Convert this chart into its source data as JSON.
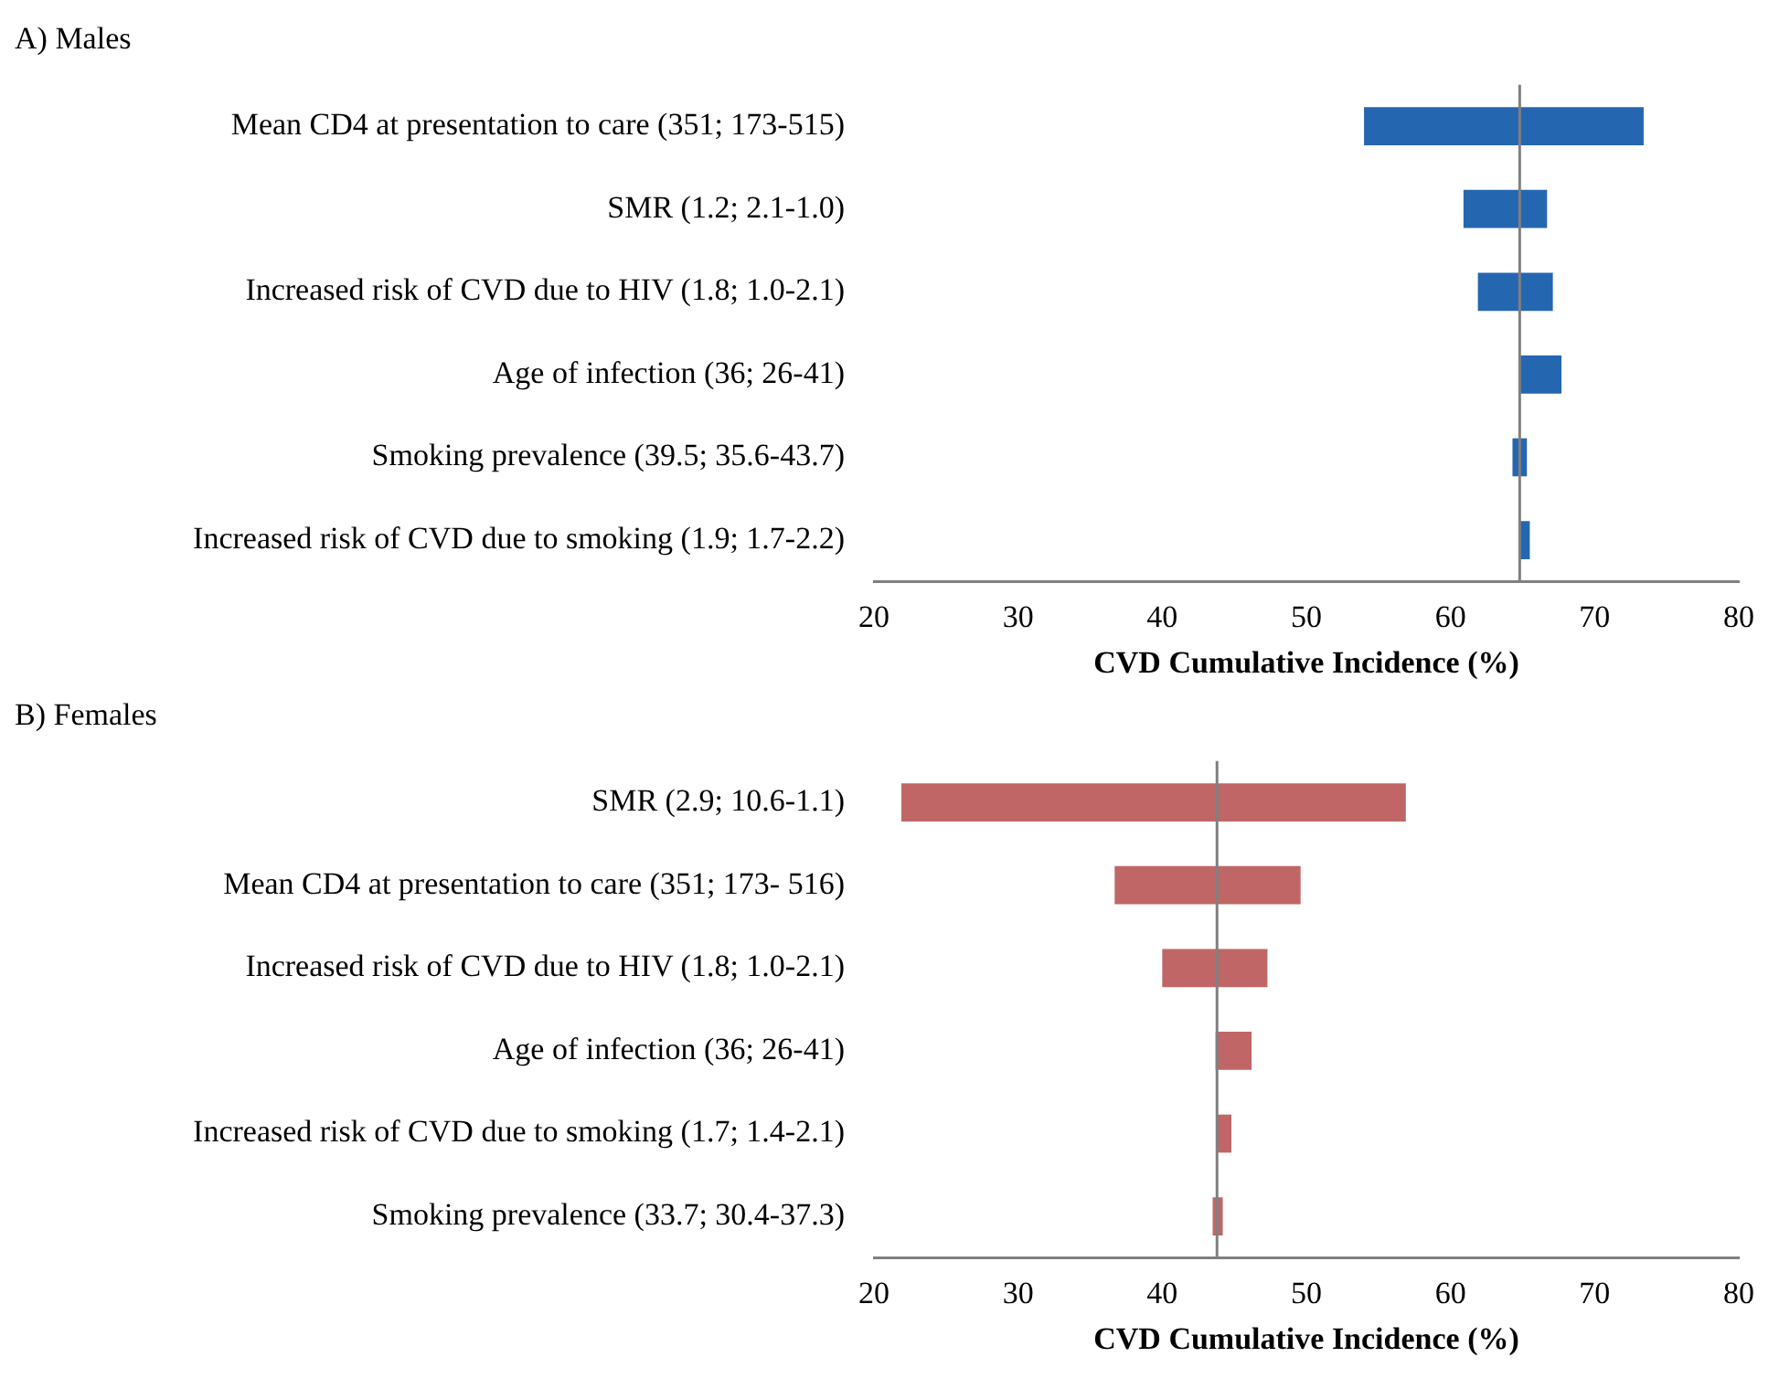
{
  "chart_data": [
    {
      "type": "bar",
      "orientation": "horizontal",
      "title": "A) Males",
      "xlabel": "CVD Cumulative Incidence (%)",
      "categories": [
        "Mean CD4 at presentation to care (351; 173-515)",
        "SMR (1.2; 2.1-1.0)",
        "Increased risk of CVD due to HIV (1.8; 1.0-2.1)",
        "Age of infection (36; 26-41)",
        "Smoking prevalence (39.5; 35.6-43.7)",
        "Increased risk of CVD due to smoking (1.9; 1.7-2.2)"
      ],
      "values": [
        19.4,
        5.8,
        5.2,
        2.9,
        1.0,
        0.7
      ],
      "base": [
        54.0,
        60.9,
        61.9,
        64.8,
        64.3,
        64.8
      ],
      "color": "#2566b0",
      "xlim": [
        20,
        80
      ],
      "xticks": [
        20,
        30,
        40,
        50,
        60,
        70,
        80
      ],
      "grid": false,
      "legend": false,
      "ref_lines": [
        {
          "axis": "x",
          "value": 64.8,
          "color": "#808080"
        }
      ]
    },
    {
      "type": "bar",
      "orientation": "horizontal",
      "title": "B) Females",
      "xlabel": "CVD Cumulative Incidence (%)",
      "categories": [
        "SMR (2.9; 10.6-1.1)",
        "Mean CD4 at presentation to care (351; 173- 516)",
        "Increased risk of CVD due to HIV (1.8; 1.0-2.1)",
        "Age of infection (36; 26-41)",
        "Increased risk of CVD due to smoking (1.7; 1.4-2.1)",
        "Smoking prevalence (33.7; 30.4-37.3)"
      ],
      "values": [
        35.0,
        12.9,
        7.3,
        2.5,
        1.0,
        0.7
      ],
      "base": [
        21.9,
        36.7,
        40.0,
        43.7,
        43.8,
        43.5
      ],
      "color": "#c06666",
      "xlim": [
        20,
        80
      ],
      "xticks": [
        20,
        30,
        40,
        50,
        60,
        70,
        80
      ],
      "grid": false,
      "legend": false,
      "ref_lines": [
        {
          "axis": "x",
          "value": 43.8,
          "color": "#808080"
        }
      ]
    }
  ]
}
